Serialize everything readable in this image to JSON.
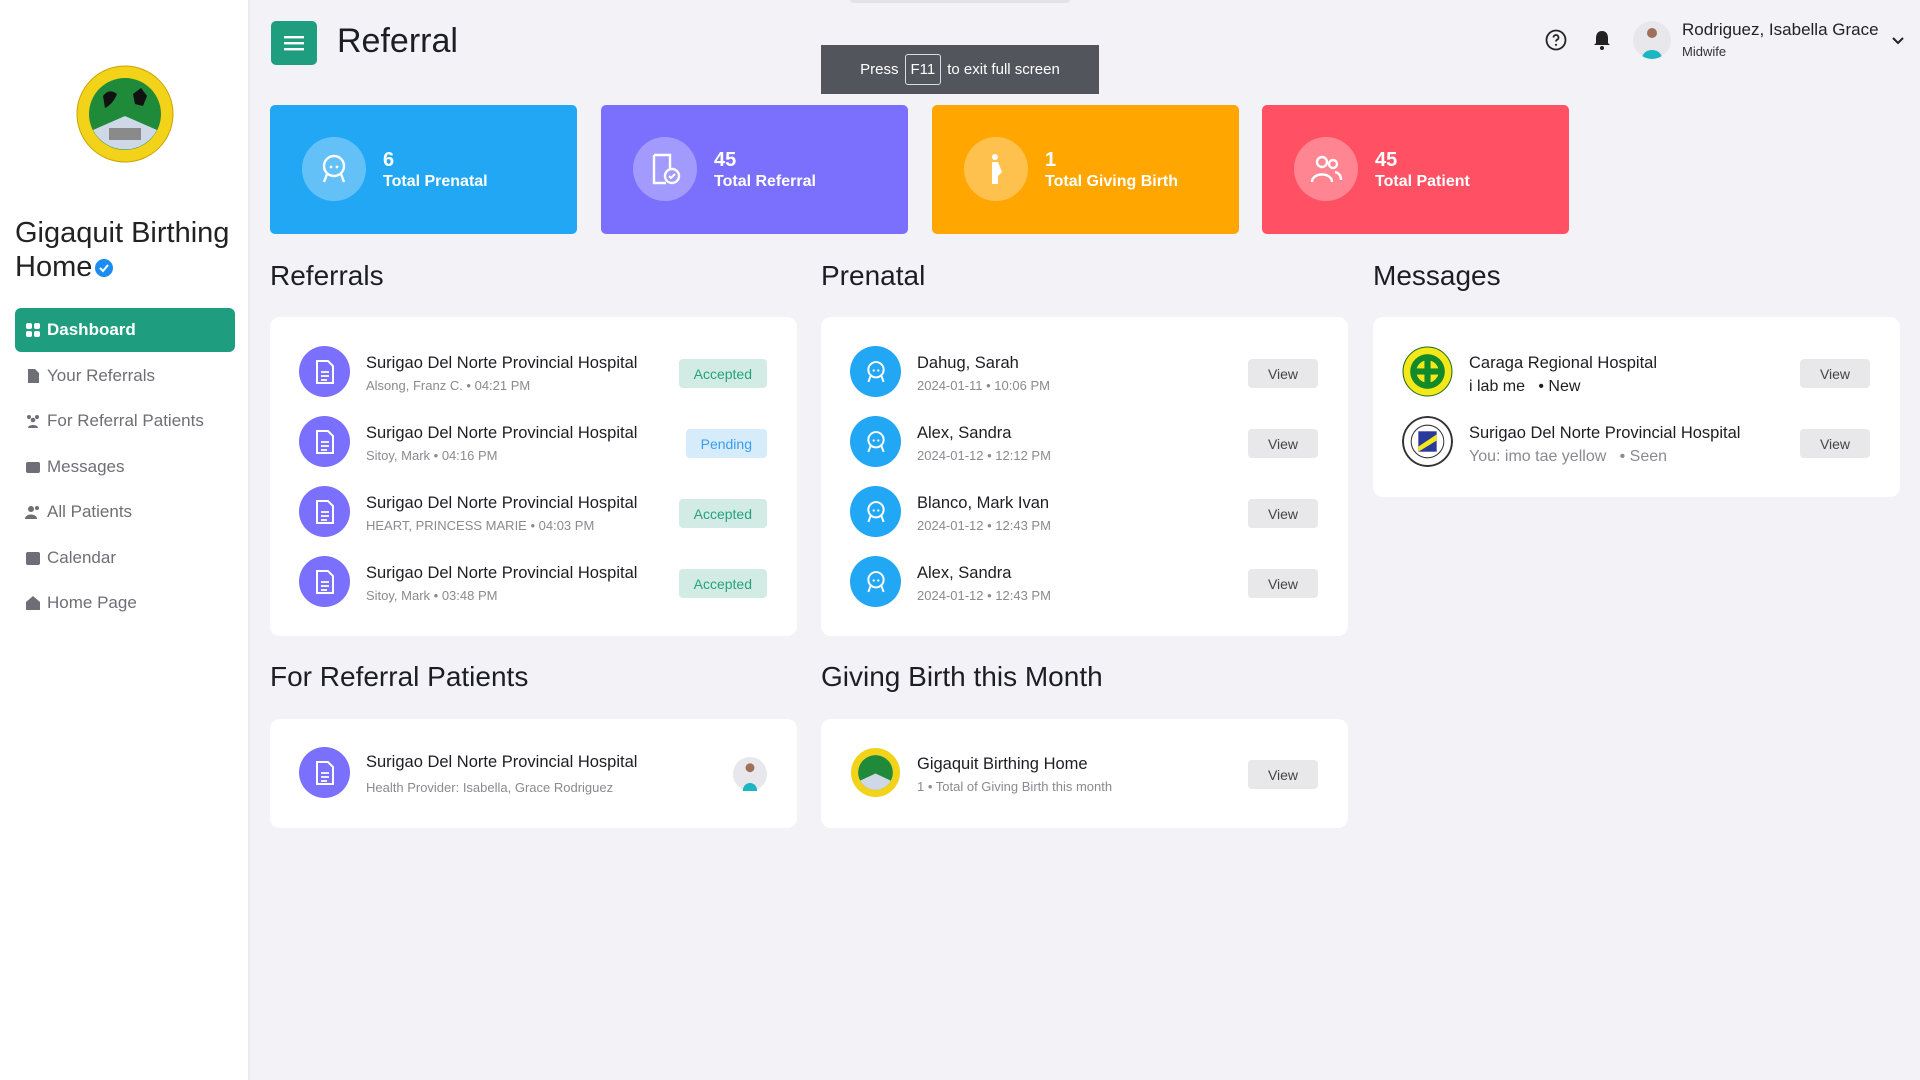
{
  "sidebar": {
    "brand": "Gigaquit Birthing Home",
    "items": [
      {
        "label": "Dashboard",
        "icon": "grid-icon",
        "active": true
      },
      {
        "label": "Your Referrals",
        "icon": "file-icon"
      },
      {
        "label": "For Referral Patients",
        "icon": "users-icon"
      },
      {
        "label": "Messages",
        "icon": "envelope-icon"
      },
      {
        "label": "All Patients",
        "icon": "user-group-icon"
      },
      {
        "label": "Calendar",
        "icon": "calendar-clock-icon"
      },
      {
        "label": "Home Page",
        "icon": "home-icon"
      }
    ]
  },
  "header": {
    "title": "Referral",
    "user_name": "Rodriguez, Isabella Grace",
    "user_role": "Midwife"
  },
  "toast": {
    "prefix": "Press",
    "key": "F11",
    "suffix": "to exit full screen"
  },
  "stats": [
    {
      "value": "6",
      "label": "Total Prenatal",
      "color": "#22a7f5"
    },
    {
      "value": "45",
      "label": "Total Referral",
      "color": "#7a70fd"
    },
    {
      "value": "1",
      "label": "Total Giving Birth",
      "color": "#ffa600"
    },
    {
      "value": "45",
      "label": "Total Patient",
      "color": "#ff5163"
    }
  ],
  "referrals": {
    "title": "Referrals",
    "items": [
      {
        "hospital": "Surigao Del Norte Provincial Hospital",
        "sub": "Alsong, Franz C. • 04:21 PM",
        "status": "Accepted"
      },
      {
        "hospital": "Surigao Del Norte Provincial Hospital",
        "sub": "Sitoy, Mark • 04:16 PM",
        "status": "Pending"
      },
      {
        "hospital": "Surigao Del Norte Provincial Hospital",
        "sub": "HEART, PRINCESS MARIE • 04:03 PM",
        "status": "Accepted"
      },
      {
        "hospital": "Surigao Del Norte Provincial Hospital",
        "sub": "Sitoy, Mark • 03:48 PM",
        "status": "Accepted"
      }
    ]
  },
  "prenatal": {
    "title": "Prenatal",
    "view_label": "View",
    "items": [
      {
        "name": "Dahug, Sarah",
        "sub": "2024-01-11 • 10:06 PM"
      },
      {
        "name": "Alex, Sandra",
        "sub": "2024-01-12 • 12:12 PM"
      },
      {
        "name": "Blanco, Mark Ivan",
        "sub": "2024-01-12 • 12:43 PM"
      },
      {
        "name": "Alex, Sandra",
        "sub": "2024-01-12 • 12:43 PM"
      }
    ]
  },
  "messages": {
    "title": "Messages",
    "view_label": "View",
    "items": [
      {
        "name": "Caraga Regional Hospital",
        "text": "i lab me",
        "status": "• New"
      },
      {
        "name": "Surigao Del Norte Provincial Hospital",
        "text": "You: imo tae yellow",
        "status": "• Seen"
      }
    ]
  },
  "for_referral": {
    "title": "For Referral Patients",
    "item": {
      "hospital": "Surigao Del Norte Provincial Hospital",
      "sub": "Health Provider: Isabella, Grace Rodriguez"
    }
  },
  "giving_birth": {
    "title": "Giving Birth this Month",
    "view_label": "View",
    "item": {
      "name": "Gigaquit Birthing Home",
      "sub": "1 • Total of Giving Birth this month"
    }
  }
}
